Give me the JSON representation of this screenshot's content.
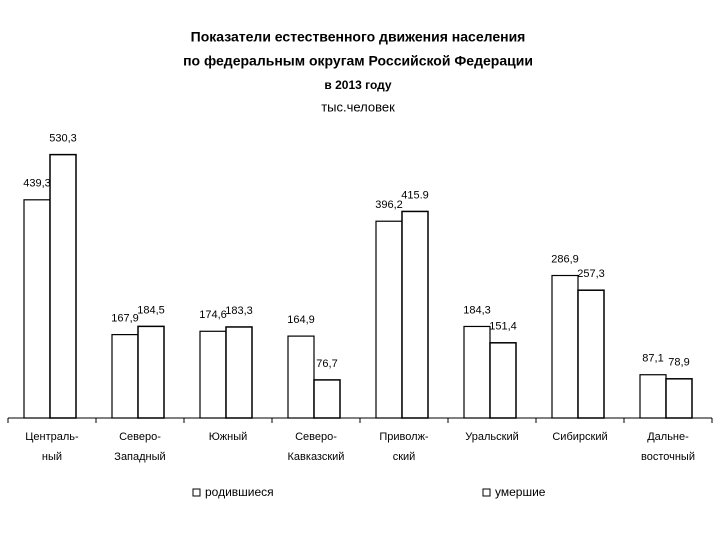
{
  "chart_data": {
    "type": "bar",
    "title": [
      "Показатели естественного движения населения",
      "по федеральным округам Российской Федерации",
      "в 2013 году"
    ],
    "subtitle": "тыс.человек",
    "categories": [
      [
        "Централь-",
        "ный"
      ],
      [
        "Северо-",
        "Западный"
      ],
      [
        "Южный"
      ],
      [
        "Северо-",
        "Кавказский"
      ],
      [
        "Приволж-",
        "ский"
      ],
      [
        "Уральский"
      ],
      [
        "Сибирский"
      ],
      [
        "Дальне-",
        "восточный"
      ]
    ],
    "series": [
      {
        "name": "родившиеся",
        "color": "#ffffff",
        "values": [
          439.3,
          167.9,
          174.6,
          164.9,
          396.2,
          184.3,
          286.9,
          87.1
        ],
        "value_labels": [
          "439,3",
          "167,9",
          "174,6",
          "164,9",
          "396,2",
          "184,3",
          "286,9",
          "87,1"
        ]
      },
      {
        "name": "умершие",
        "color": "#ffffff",
        "values": [
          530.3,
          184.5,
          183.3,
          76.7,
          415.9,
          151.4,
          257.3,
          78.9
        ],
        "value_labels": [
          "530,3",
          "184,5",
          "183,3",
          "76,7",
          "415.9",
          "151,4",
          "257,3",
          "78,9"
        ]
      }
    ],
    "ylim": [
      0,
      600
    ],
    "legend": "bottom"
  }
}
